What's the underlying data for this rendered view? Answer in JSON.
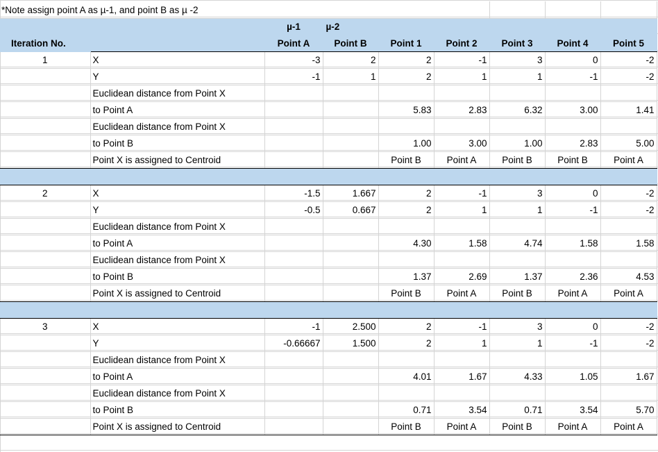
{
  "note": "*Note assign point A as µ-1, and point B as µ -2",
  "header": {
    "iteration_label": "Iteration No.",
    "mu1": "µ-1",
    "mu2": "µ-2",
    "point_a": "Point A",
    "point_b": "Point B",
    "points": [
      "Point 1",
      "Point 2",
      "Point 3",
      "Point 4",
      "Point 5"
    ]
  },
  "labels": {
    "x": "X",
    "y": "Y",
    "dist_a_line1": "Euclidean distance from Point X",
    "dist_a_line2": "to Point A",
    "dist_b_line1": "Euclidean distance from Point X",
    "dist_b_line2": "to Point B",
    "assigned": "Point X is assigned to Centroid"
  },
  "iterations": [
    {
      "no": "1",
      "centroid_a": {
        "x": "-3",
        "y": "-1"
      },
      "centroid_b": {
        "x": "2",
        "y": "1"
      },
      "px": [
        "2",
        "-1",
        "3",
        "0",
        "-2"
      ],
      "py": [
        "2",
        "1",
        "1",
        "-1",
        "-2"
      ],
      "dist_a": [
        "5.83",
        "2.83",
        "6.32",
        "3.00",
        "1.41"
      ],
      "dist_b": [
        "1.00",
        "3.00",
        "1.00",
        "2.83",
        "5.00"
      ],
      "assigned": [
        "Point B",
        "Point A",
        "Point B",
        "Point B",
        "Point A"
      ]
    },
    {
      "no": "2",
      "centroid_a": {
        "x": "-1.5",
        "y": "-0.5"
      },
      "centroid_b": {
        "x": "1.667",
        "y": "0.667"
      },
      "px": [
        "2",
        "-1",
        "3",
        "0",
        "-2"
      ],
      "py": [
        "2",
        "1",
        "1",
        "-1",
        "-2"
      ],
      "dist_a": [
        "4.30",
        "1.58",
        "4.74",
        "1.58",
        "1.58"
      ],
      "dist_b": [
        "1.37",
        "2.69",
        "1.37",
        "2.36",
        "4.53"
      ],
      "assigned": [
        "Point B",
        "Point A",
        "Point B",
        "Point A",
        "Point A"
      ]
    },
    {
      "no": "3",
      "centroid_a": {
        "x": "-1",
        "y": "-0.66667"
      },
      "centroid_b": {
        "x": "2.500",
        "y": "1.500"
      },
      "px": [
        "2",
        "-1",
        "3",
        "0",
        "-2"
      ],
      "py": [
        "2",
        "1",
        "1",
        "-1",
        "-2"
      ],
      "dist_a": [
        "4.01",
        "1.67",
        "4.33",
        "1.05",
        "1.67"
      ],
      "dist_b": [
        "0.71",
        "3.54",
        "0.71",
        "3.54",
        "5.70"
      ],
      "assigned": [
        "Point B",
        "Point A",
        "Point B",
        "Point A",
        "Point A"
      ]
    }
  ]
}
